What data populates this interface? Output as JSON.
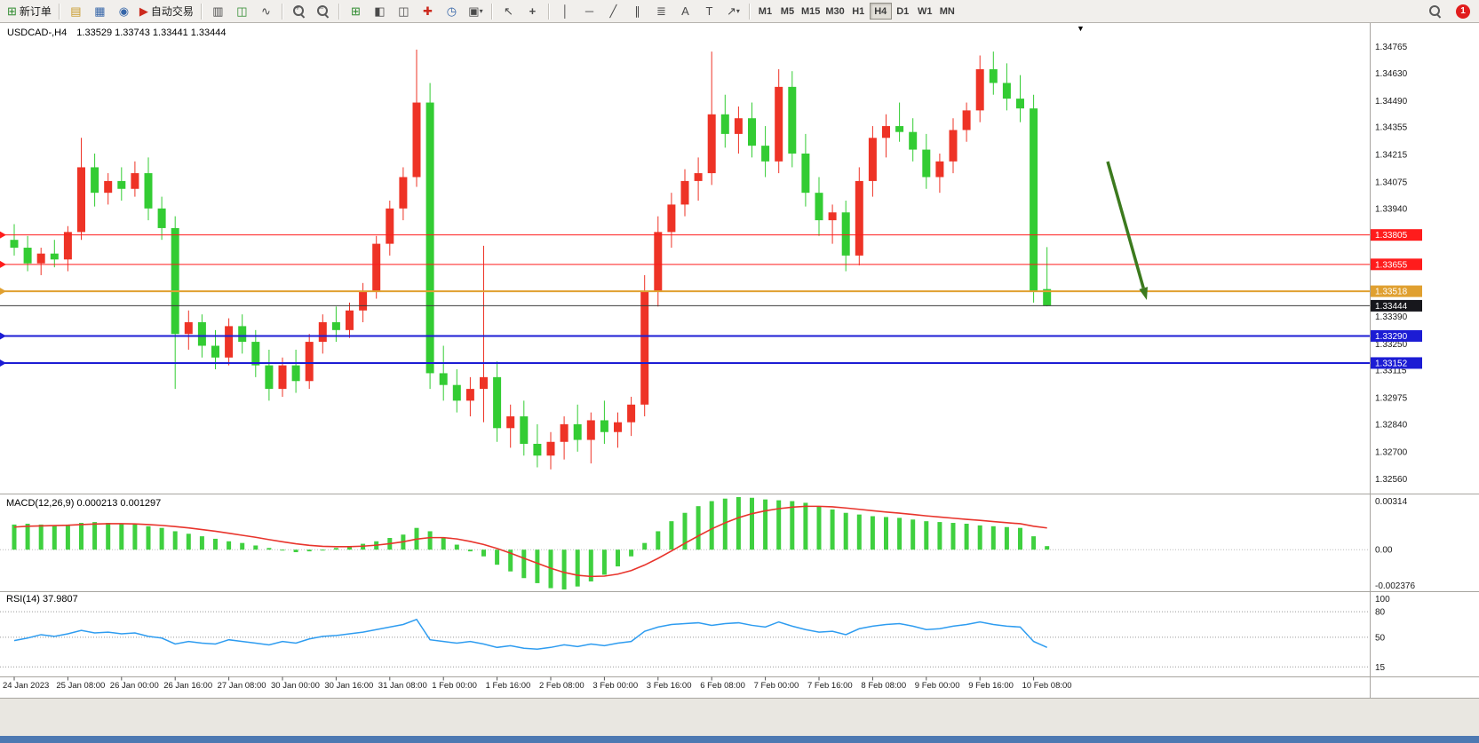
{
  "toolbar": {
    "new_order": "新订单",
    "autotrading": "自动交易",
    "timeframes": [
      "M1",
      "M5",
      "M15",
      "M30",
      "H1",
      "H4",
      "D1",
      "W1",
      "MN"
    ],
    "active_timeframe": "H4",
    "notification_count": "1",
    "icons": {
      "new_order": "⊞",
      "charts_folder": "▤",
      "market_watch": "▦",
      "community": "◉",
      "autotrading": "▶",
      "chart_bars": "▥",
      "chart_candles": "◫",
      "chart_line": "∿",
      "zoom_in": "+",
      "zoom_out": "−",
      "new_chart": "⊞",
      "cascade_windows": "◧",
      "tile_windows": "◫",
      "plus_chart": "✚",
      "period_clock": "◷",
      "template_camera": "▣",
      "cursor": "↖",
      "crosshair": "+",
      "vline": "│",
      "hline": "─",
      "trendline": "╱",
      "channel": "∥",
      "fibonacci": "≣",
      "shapes": "↗",
      "text": "A",
      "label": "T",
      "dropdown": "▾",
      "chart_menu": "▼"
    }
  },
  "chart": {
    "symbol_header": "USDCAD-,H4",
    "ohlc": "1.33529 1.33743 1.33441 1.33444"
  },
  "chart_data": {
    "type": "candlestick",
    "symbol": "USDCAD",
    "timeframe": "H4",
    "up_color": "#ee3326",
    "down_color": "#33cc33",
    "note": "Chinese color convention: red = bullish, green = bearish",
    "price_range": [
      1.325,
      1.3484
    ],
    "candles": [
      [
        1.3378,
        1.3386,
        1.337,
        1.3374
      ],
      [
        1.3374,
        1.338,
        1.3362,
        1.3366
      ],
      [
        1.3366,
        1.3374,
        1.336,
        1.3371
      ],
      [
        1.3371,
        1.3378,
        1.3364,
        1.3368
      ],
      [
        1.3368,
        1.3385,
        1.3362,
        1.3382
      ],
      [
        1.3382,
        1.343,
        1.3378,
        1.3415
      ],
      [
        1.3415,
        1.3422,
        1.3395,
        1.3402
      ],
      [
        1.3402,
        1.3412,
        1.3396,
        1.3408
      ],
      [
        1.3408,
        1.3415,
        1.3398,
        1.3404
      ],
      [
        1.3404,
        1.3418,
        1.34,
        1.3412
      ],
      [
        1.3412,
        1.342,
        1.3388,
        1.3394
      ],
      [
        1.3394,
        1.34,
        1.3378,
        1.3384
      ],
      [
        1.3384,
        1.339,
        1.3302,
        1.333
      ],
      [
        1.333,
        1.3342,
        1.3322,
        1.3336
      ],
      [
        1.3336,
        1.334,
        1.3318,
        1.3324
      ],
      [
        1.3324,
        1.3332,
        1.3312,
        1.3318
      ],
      [
        1.3318,
        1.3338,
        1.3314,
        1.3334
      ],
      [
        1.3334,
        1.334,
        1.332,
        1.3326
      ],
      [
        1.3326,
        1.3332,
        1.3308,
        1.3314
      ],
      [
        1.3314,
        1.3322,
        1.3296,
        1.3302
      ],
      [
        1.3302,
        1.3318,
        1.3298,
        1.3314
      ],
      [
        1.3314,
        1.3322,
        1.33,
        1.3306
      ],
      [
        1.3306,
        1.333,
        1.3302,
        1.3326
      ],
      [
        1.3326,
        1.334,
        1.332,
        1.3336
      ],
      [
        1.3336,
        1.3344,
        1.3326,
        1.3332
      ],
      [
        1.3332,
        1.3346,
        1.3328,
        1.3342
      ],
      [
        1.3342,
        1.3356,
        1.3336,
        1.3352
      ],
      [
        1.3352,
        1.338,
        1.3348,
        1.3376
      ],
      [
        1.3376,
        1.3398,
        1.337,
        1.3394
      ],
      [
        1.3394,
        1.3415,
        1.3388,
        1.341
      ],
      [
        1.341,
        1.3475,
        1.3405,
        1.3448
      ],
      [
        1.3448,
        1.3458,
        1.3302,
        1.331
      ],
      [
        1.331,
        1.3324,
        1.3296,
        1.3304
      ],
      [
        1.3304,
        1.3312,
        1.329,
        1.3296
      ],
      [
        1.3296,
        1.3308,
        1.3288,
        1.3302
      ],
      [
        1.3302,
        1.3375,
        1.3285,
        1.3308
      ],
      [
        1.3308,
        1.3316,
        1.3275,
        1.3282
      ],
      [
        1.3282,
        1.3294,
        1.3272,
        1.3288
      ],
      [
        1.3288,
        1.3296,
        1.3268,
        1.3274
      ],
      [
        1.3274,
        1.3284,
        1.3262,
        1.3268
      ],
      [
        1.3268,
        1.328,
        1.3261,
        1.3275
      ],
      [
        1.3275,
        1.3288,
        1.3266,
        1.3284
      ],
      [
        1.3284,
        1.3294,
        1.327,
        1.3276
      ],
      [
        1.3276,
        1.329,
        1.3264,
        1.3286
      ],
      [
        1.3286,
        1.3296,
        1.3274,
        1.328
      ],
      [
        1.328,
        1.329,
        1.3272,
        1.3285
      ],
      [
        1.3285,
        1.3298,
        1.3278,
        1.3294
      ],
      [
        1.3294,
        1.336,
        1.3288,
        1.3352
      ],
      [
        1.3352,
        1.339,
        1.3344,
        1.3382
      ],
      [
        1.3382,
        1.3402,
        1.3374,
        1.3396
      ],
      [
        1.3396,
        1.3414,
        1.339,
        1.3408
      ],
      [
        1.3408,
        1.342,
        1.3398,
        1.3412
      ],
      [
        1.3412,
        1.3474,
        1.3406,
        1.3442
      ],
      [
        1.3442,
        1.3452,
        1.3425,
        1.3432
      ],
      [
        1.3432,
        1.3446,
        1.3422,
        1.344
      ],
      [
        1.344,
        1.3448,
        1.342,
        1.3426
      ],
      [
        1.3426,
        1.3436,
        1.341,
        1.3418
      ],
      [
        1.3418,
        1.3465,
        1.3412,
        1.3456
      ],
      [
        1.3456,
        1.3464,
        1.3415,
        1.3422
      ],
      [
        1.3422,
        1.3432,
        1.3395,
        1.3402
      ],
      [
        1.3402,
        1.341,
        1.338,
        1.3388
      ],
      [
        1.3388,
        1.3396,
        1.3376,
        1.3392
      ],
      [
        1.3392,
        1.3398,
        1.3362,
        1.337
      ],
      [
        1.337,
        1.3415,
        1.3365,
        1.3408
      ],
      [
        1.3408,
        1.3436,
        1.34,
        1.343
      ],
      [
        1.343,
        1.3442,
        1.342,
        1.3436
      ],
      [
        1.3436,
        1.3448,
        1.3428,
        1.3433
      ],
      [
        1.3433,
        1.344,
        1.3418,
        1.3424
      ],
      [
        1.3424,
        1.3432,
        1.3404,
        1.341
      ],
      [
        1.341,
        1.3422,
        1.3402,
        1.3418
      ],
      [
        1.3418,
        1.344,
        1.3412,
        1.3434
      ],
      [
        1.3434,
        1.3448,
        1.3428,
        1.3444
      ],
      [
        1.3444,
        1.3472,
        1.3438,
        1.3465
      ],
      [
        1.3465,
        1.3474,
        1.3452,
        1.3458
      ],
      [
        1.3458,
        1.3468,
        1.3444,
        1.345
      ],
      [
        1.345,
        1.3462,
        1.3438,
        1.3445
      ],
      [
        1.3445,
        1.3452,
        1.3346,
        1.3352
      ],
      [
        1.33529,
        1.33743,
        1.33441,
        1.33444
      ]
    ],
    "time_labels": [
      "24 Jan 2023",
      "25 Jan 08:00",
      "26 Jan 00:00",
      "26 Jan 16:00",
      "27 Jan 08:00",
      "30 Jan 00:00",
      "30 Jan 16:00",
      "31 Jan 08:00",
      "1 Feb 00:00",
      "1 Feb 16:00",
      "2 Feb 08:00",
      "3 Feb 00:00",
      "3 Feb 16:00",
      "6 Feb 08:00",
      "7 Feb 00:00",
      "7 Feb 16:00",
      "8 Feb 08:00",
      "9 Feb 00:00",
      "9 Feb 16:00",
      "10 Feb 08:00"
    ],
    "price_axis_labels": [
      "1.34765",
      "1.34630",
      "1.34490",
      "1.34355",
      "1.34215",
      "1.34075",
      "1.33940",
      "1.33390",
      "1.33250",
      "1.33115",
      "1.32975",
      "1.32840",
      "1.32700",
      "1.32560"
    ],
    "hlines": [
      {
        "price": 1.33805,
        "label": "1.33805",
        "color": "#ff1c1c",
        "width": 1
      },
      {
        "price": 1.33655,
        "label": "1.33655",
        "color": "#ff1c1c",
        "width": 1
      },
      {
        "price": 1.33518,
        "label": "1.33518",
        "color": "#e0a030",
        "width": 2
      },
      {
        "price": 1.3329,
        "label": "1.33290",
        "color": "#1c1cd4",
        "width": 2
      },
      {
        "price": 1.33152,
        "label": "1.33152",
        "color": "#1c1cd4",
        "width": 2
      }
    ],
    "bid_line": {
      "price": 1.33444,
      "label": "1.33444",
      "color": "#3a3a3a",
      "tag": "#17171c",
      "width": 1
    },
    "arrow": {
      "from": [
        1247,
        182
      ],
      "to": [
        1291,
        338
      ],
      "color": "#3c7a1e",
      "width": 3.5
    },
    "macd": {
      "label": "MACD(12,26,9) 0.000213 0.001297",
      "axis_max": "0.00314",
      "axis_zero": "0.00",
      "axis_min": "-0.002376",
      "range": [
        -0.002376,
        0.00314
      ],
      "histogram_color": "#3fd03f",
      "signal_color": "#e8342c",
      "histogram": [
        0.0015,
        0.00155,
        0.0015,
        0.00145,
        0.0015,
        0.0016,
        0.00165,
        0.0016,
        0.00155,
        0.0015,
        0.0014,
        0.0013,
        0.0011,
        0.00095,
        0.0008,
        0.00065,
        0.0005,
        0.0004,
        0.00025,
        0.0001,
        -5e-05,
        -0.00015,
        -0.0001,
        0.0,
        0.0001,
        0.0002,
        0.00035,
        0.0005,
        0.0007,
        0.0009,
        0.0013,
        0.0011,
        0.0007,
        0.0003,
        -0.0001,
        -0.0004,
        -0.0009,
        -0.0013,
        -0.0017,
        -0.002,
        -0.0023,
        -0.00238,
        -0.0022,
        -0.0019,
        -0.0015,
        -0.001,
        -0.0004,
        0.0004,
        0.0011,
        0.0017,
        0.0022,
        0.0026,
        0.0029,
        0.00305,
        0.00314,
        0.0031,
        0.003,
        0.00295,
        0.0029,
        0.0028,
        0.0026,
        0.0024,
        0.0022,
        0.0021,
        0.002,
        0.00195,
        0.0019,
        0.0018,
        0.0017,
        0.00165,
        0.0016,
        0.00155,
        0.00145,
        0.0014,
        0.00135,
        0.0013,
        0.0008,
        0.000213
      ],
      "signal": [
        0.00135,
        0.0014,
        0.00142,
        0.00144,
        0.00146,
        0.0015,
        0.00153,
        0.00155,
        0.00155,
        0.00154,
        0.0015,
        0.00145,
        0.00138,
        0.0013,
        0.0012,
        0.0011,
        0.00098,
        0.00086,
        0.00074,
        0.0006,
        0.00047,
        0.00035,
        0.00026,
        0.0002,
        0.00018,
        0.00018,
        0.00021,
        0.00027,
        0.00036,
        0.00047,
        0.00063,
        0.00072,
        0.00072,
        0.00064,
        0.00049,
        0.00031,
        7e-05,
        -0.00021,
        -0.00051,
        -0.00081,
        -0.00111,
        -0.00136,
        -0.00153,
        -0.0016,
        -0.00158,
        -0.00146,
        -0.00125,
        -0.00092,
        -0.00052,
        -8e-05,
        0.00038,
        0.00082,
        0.00124,
        0.0016,
        0.00191,
        0.00215,
        0.00232,
        0.00245,
        0.00254,
        0.00259,
        0.00259,
        0.00256,
        0.00249,
        0.00241,
        0.00233,
        0.00225,
        0.00218,
        0.0021,
        0.00202,
        0.00195,
        0.00188,
        0.00181,
        0.00175,
        0.00168,
        0.00161,
        0.00155,
        0.0014,
        0.001297
      ]
    },
    "rsi": {
      "label": "RSI(14) 37.9807",
      "axis_labels": [
        "100",
        "80",
        "50",
        "15"
      ],
      "levels": [
        80,
        50,
        15
      ],
      "range": [
        8,
        100
      ],
      "line_color": "#2e9cf0",
      "values": [
        46,
        49,
        53,
        51,
        54,
        58,
        55,
        56,
        54,
        55,
        51,
        49,
        42,
        45,
        43,
        42,
        47,
        45,
        43,
        41,
        45,
        43,
        48,
        51,
        52,
        54,
        56,
        59,
        62,
        65,
        71,
        47,
        45,
        43,
        45,
        42,
        38,
        40,
        37,
        36,
        38,
        41,
        39,
        42,
        40,
        43,
        45,
        57,
        62,
        65,
        66,
        67,
        64,
        66,
        67,
        64,
        62,
        68,
        63,
        59,
        56,
        57,
        53,
        60,
        63,
        65,
        66,
        63,
        59,
        60,
        63,
        65,
        68,
        65,
        63,
        62,
        45,
        37.98
      ]
    }
  }
}
